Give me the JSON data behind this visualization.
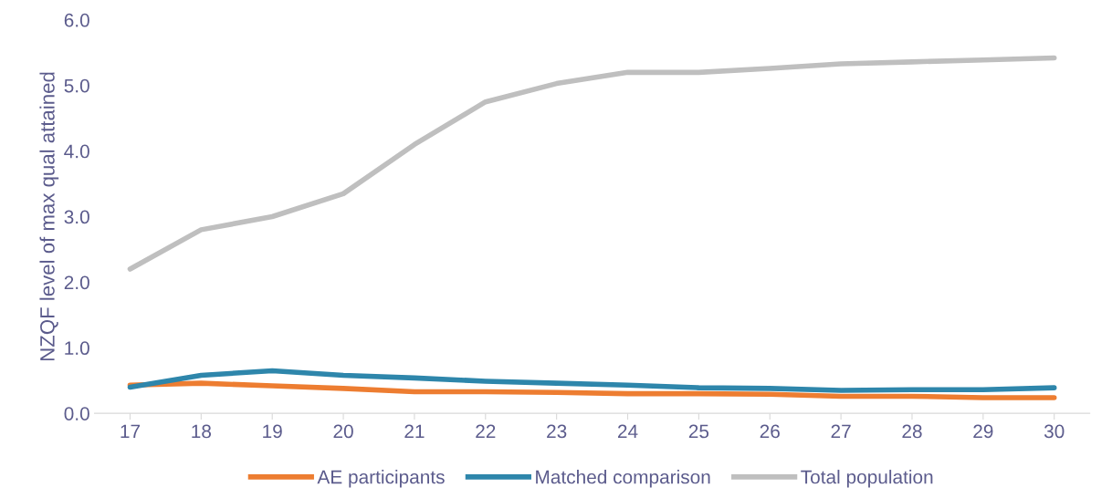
{
  "chart_data": {
    "type": "line",
    "ylabel": "NZQF level of max qual attained",
    "categories": [
      "17",
      "18",
      "19",
      "20",
      "21",
      "22",
      "23",
      "24",
      "25",
      "26",
      "27",
      "28",
      "29",
      "30"
    ],
    "series": [
      {
        "name": "AE participants",
        "color": "#ed7d31",
        "values": [
          0.43,
          0.46,
          0.42,
          0.38,
          0.33,
          0.33,
          0.32,
          0.3,
          0.3,
          0.29,
          0.26,
          0.26,
          0.24,
          0.24
        ]
      },
      {
        "name": "Matched comparison",
        "color": "#2e86ab",
        "values": [
          0.4,
          0.58,
          0.65,
          0.58,
          0.54,
          0.49,
          0.46,
          0.43,
          0.39,
          0.38,
          0.35,
          0.36,
          0.36,
          0.39
        ]
      },
      {
        "name": "Total population",
        "color": "#bfbfbf",
        "values": [
          2.2,
          2.8,
          3.0,
          3.35,
          4.1,
          4.75,
          5.03,
          5.2,
          5.2,
          5.26,
          5.33,
          5.36,
          5.39,
          5.42
        ]
      }
    ],
    "ylim": [
      0,
      6
    ],
    "yticks": [
      {
        "value": 0,
        "label": "0.0"
      },
      {
        "value": 1,
        "label": "1.0"
      },
      {
        "value": 2,
        "label": "2.0"
      },
      {
        "value": 3,
        "label": "3.0"
      },
      {
        "value": 4,
        "label": "4.0"
      },
      {
        "value": 5,
        "label": "5.0"
      },
      {
        "value": 6,
        "label": "6.0"
      }
    ],
    "grid": false,
    "legend": "bottom",
    "marker": "none",
    "line_style": "solid"
  }
}
